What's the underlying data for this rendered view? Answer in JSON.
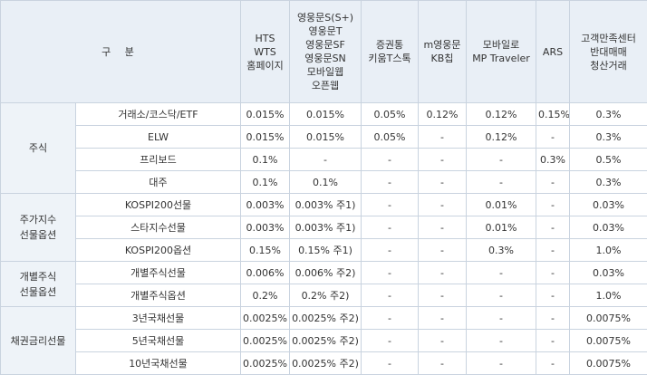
{
  "header": {
    "category": "구 분",
    "channels": [
      [
        "HTS",
        "WTS",
        "홈페이지"
      ],
      [
        "영웅문S(S+)",
        "영웅문T",
        "영웅문SF",
        "영웅문SN",
        "모바일웹",
        "오픈웹"
      ],
      [
        "증권통",
        "키움T스톡"
      ],
      [
        "m영웅문",
        "KB칩"
      ],
      [
        "모바일로",
        "MP Traveler"
      ],
      [
        "ARS"
      ],
      [
        "고객만족센터",
        "반대매매",
        "청산거래"
      ]
    ]
  },
  "groups": [
    {
      "name": [
        "주식"
      ],
      "rows": [
        {
          "item": "거래소/코스닥/ETF",
          "values": [
            "0.015%",
            "0.015%",
            "0.05%",
            "0.12%",
            "0.12%",
            "0.15%",
            "0.3%"
          ]
        },
        {
          "item": "ELW",
          "values": [
            "0.015%",
            "0.015%",
            "0.05%",
            "-",
            "0.12%",
            "-",
            "0.3%"
          ]
        },
        {
          "item": "프리보드",
          "values": [
            "0.1%",
            "-",
            "-",
            "-",
            "-",
            "0.3%",
            "0.5%"
          ]
        },
        {
          "item": "대주",
          "values": [
            "0.1%",
            "0.1%",
            "-",
            "-",
            "-",
            "-",
            "0.3%"
          ]
        }
      ]
    },
    {
      "name": [
        "주가지수",
        "선물옵션"
      ],
      "rows": [
        {
          "item": "KOSPI200선물",
          "values": [
            "0.003%",
            "0.003% 주1)",
            "-",
            "-",
            "0.01%",
            "-",
            "0.03%"
          ]
        },
        {
          "item": "스타지수선물",
          "values": [
            "0.003%",
            "0.003% 주1)",
            "-",
            "-",
            "0.01%",
            "-",
            "0.03%"
          ]
        },
        {
          "item": "KOSPI200옵션",
          "values": [
            "0.15%",
            "0.15% 주1)",
            "-",
            "-",
            "0.3%",
            "-",
            "1.0%"
          ]
        }
      ]
    },
    {
      "name": [
        "개별주식",
        "선물옵션"
      ],
      "rows": [
        {
          "item": "개별주식선물",
          "values": [
            "0.006%",
            "0.006% 주2)",
            "-",
            "-",
            "-",
            "-",
            "0.03%"
          ]
        },
        {
          "item": "개별주식옵션",
          "values": [
            "0.2%",
            "0.2% 주2)",
            "-",
            "-",
            "-",
            "-",
            "1.0%"
          ]
        }
      ]
    },
    {
      "name": [
        "채권금리선물"
      ],
      "rows": [
        {
          "item": "3년국채선물",
          "values": [
            "0.0025%",
            "0.0025% 주2)",
            "-",
            "-",
            "-",
            "-",
            "0.0075%"
          ]
        },
        {
          "item": "5년국채선물",
          "values": [
            "0.0025%",
            "0.0025% 주2)",
            "-",
            "-",
            "-",
            "-",
            "0.0075%"
          ]
        },
        {
          "item": "10년국채선물",
          "values": [
            "0.0025%",
            "0.0025% 주2)",
            "-",
            "-",
            "-",
            "-",
            "0.0075%"
          ]
        }
      ]
    }
  ],
  "colors": {
    "header_bg": "#e9eff6",
    "group_bg": "#eef3f8",
    "border": "#c9d3df",
    "text": "#333333"
  }
}
